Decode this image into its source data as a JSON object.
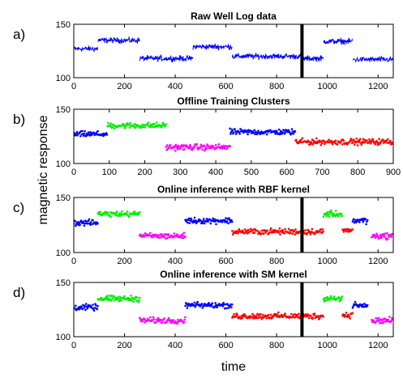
{
  "chart_data": [
    {
      "type": "line",
      "panel_label": "a)",
      "title": "Raw Well Log data",
      "xlim": [
        0,
        1260
      ],
      "ylim": [
        100,
        150
      ],
      "xticks": [
        0,
        200,
        400,
        600,
        800,
        1000,
        1200
      ],
      "yticks": [
        100,
        150
      ],
      "vline_x": 900,
      "grid": false,
      "series": [
        {
          "color": "#0000ff",
          "segments": [
            [
              0,
              95,
              127
            ],
            [
              95,
              260,
              135
            ],
            [
              260,
              470,
              118
            ],
            [
              470,
              625,
              129
            ],
            [
              625,
              900,
              120
            ],
            [
              900,
              985,
              118
            ],
            [
              985,
              1100,
              134
            ],
            [
              1100,
              1260,
              117
            ]
          ]
        }
      ]
    },
    {
      "type": "scatter",
      "panel_label": "b)",
      "title": "Offline Training Clusters",
      "xlim": [
        0,
        900
      ],
      "ylim": [
        100,
        150
      ],
      "xticks": [
        0,
        100,
        200,
        300,
        400,
        500,
        600,
        700,
        800,
        900
      ],
      "yticks": [
        100,
        150
      ],
      "grid": false,
      "series": [
        {
          "color": "#0000ff",
          "segments": [
            [
              0,
              95,
              127
            ],
            [
              440,
              625,
              129
            ]
          ]
        },
        {
          "color": "#00ee00",
          "segments": [
            [
              95,
              260,
              135
            ]
          ]
        },
        {
          "color": "#ff00ff",
          "segments": [
            [
              260,
              440,
              115
            ]
          ]
        },
        {
          "color": "#ff0000",
          "segments": [
            [
              625,
              900,
              120
            ]
          ]
        }
      ]
    },
    {
      "type": "scatter",
      "panel_label": "c)",
      "title": "Online inference with RBF kernel",
      "xlim": [
        0,
        1260
      ],
      "ylim": [
        100,
        150
      ],
      "xticks": [
        0,
        200,
        400,
        600,
        800,
        1000,
        1200
      ],
      "yticks": [
        100,
        150
      ],
      "vline_x": 900,
      "grid": false,
      "series": [
        {
          "color": "#0000ff",
          "segments": [
            [
              0,
              95,
              127
            ],
            [
              440,
              625,
              129
            ],
            [
              1100,
              1160,
              129
            ]
          ]
        },
        {
          "color": "#00ee00",
          "segments": [
            [
              95,
              260,
              135
            ],
            [
              985,
              1060,
              135
            ]
          ]
        },
        {
          "color": "#ff00ff",
          "segments": [
            [
              260,
              440,
              115
            ],
            [
              1175,
              1260,
              115
            ]
          ]
        },
        {
          "color": "#ff0000",
          "segments": [
            [
              625,
              985,
              119
            ],
            [
              1060,
              1100,
              120
            ]
          ]
        }
      ]
    },
    {
      "type": "scatter",
      "panel_label": "d)",
      "title": "Online inference with SM kernel",
      "xlim": [
        0,
        1260
      ],
      "ylim": [
        100,
        150
      ],
      "xticks": [
        0,
        200,
        400,
        600,
        800,
        1000,
        1200
      ],
      "yticks": [
        100,
        150
      ],
      "vline_x": 900,
      "grid": false,
      "series": [
        {
          "color": "#0000ff",
          "segments": [
            [
              0,
              95,
              127
            ],
            [
              440,
              625,
              129
            ],
            [
              1100,
              1160,
              129
            ]
          ]
        },
        {
          "color": "#00ee00",
          "segments": [
            [
              95,
              260,
              135
            ],
            [
              985,
              1060,
              135
            ]
          ]
        },
        {
          "color": "#ff00ff",
          "segments": [
            [
              260,
              440,
              115
            ],
            [
              1175,
              1260,
              115
            ]
          ]
        },
        {
          "color": "#ff0000",
          "segments": [
            [
              625,
              985,
              119
            ],
            [
              1060,
              1100,
              120
            ]
          ]
        }
      ]
    }
  ],
  "ylabel": "magnetic response",
  "xlabel": "time"
}
